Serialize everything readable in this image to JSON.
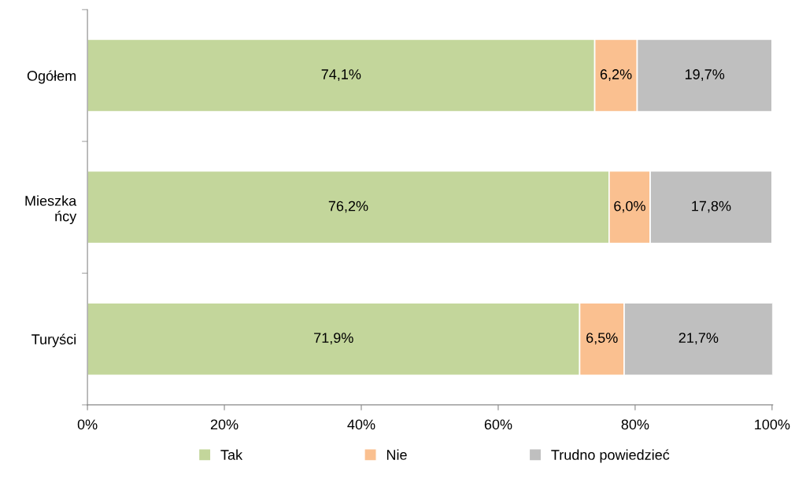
{
  "chart_data": {
    "type": "bar",
    "orientation": "horizontal",
    "stacked": true,
    "categories": [
      "Ogółem",
      "Mieszka\nńcy",
      "Turyści"
    ],
    "series": [
      {
        "name": "Tak",
        "color": "#c3d69b",
        "values": [
          74.1,
          76.2,
          71.9
        ],
        "value_labels": [
          "74,1%",
          "76,2%",
          "71,9%"
        ]
      },
      {
        "name": "Nie",
        "color": "#fac090",
        "values": [
          6.2,
          6.0,
          6.5
        ],
        "value_labels": [
          "6,2%",
          "6,0%",
          "6,5%"
        ]
      },
      {
        "name": "Trudno powiedzieć",
        "color": "#bfbfbf",
        "values": [
          19.7,
          17.8,
          21.7
        ],
        "value_labels": [
          "19,7%",
          "17,8%",
          "21,7%"
        ]
      }
    ],
    "xlim": [
      0,
      100.1
    ],
    "xticks": [
      {
        "value": 0,
        "label": "0%"
      },
      {
        "value": 20,
        "label": "20%"
      },
      {
        "value": 40,
        "label": "40%"
      },
      {
        "value": 60,
        "label": "60%"
      },
      {
        "value": 80,
        "label": "80%"
      },
      {
        "value": 100,
        "label": "100%"
      }
    ],
    "grid": false,
    "legend": "bottom"
  }
}
